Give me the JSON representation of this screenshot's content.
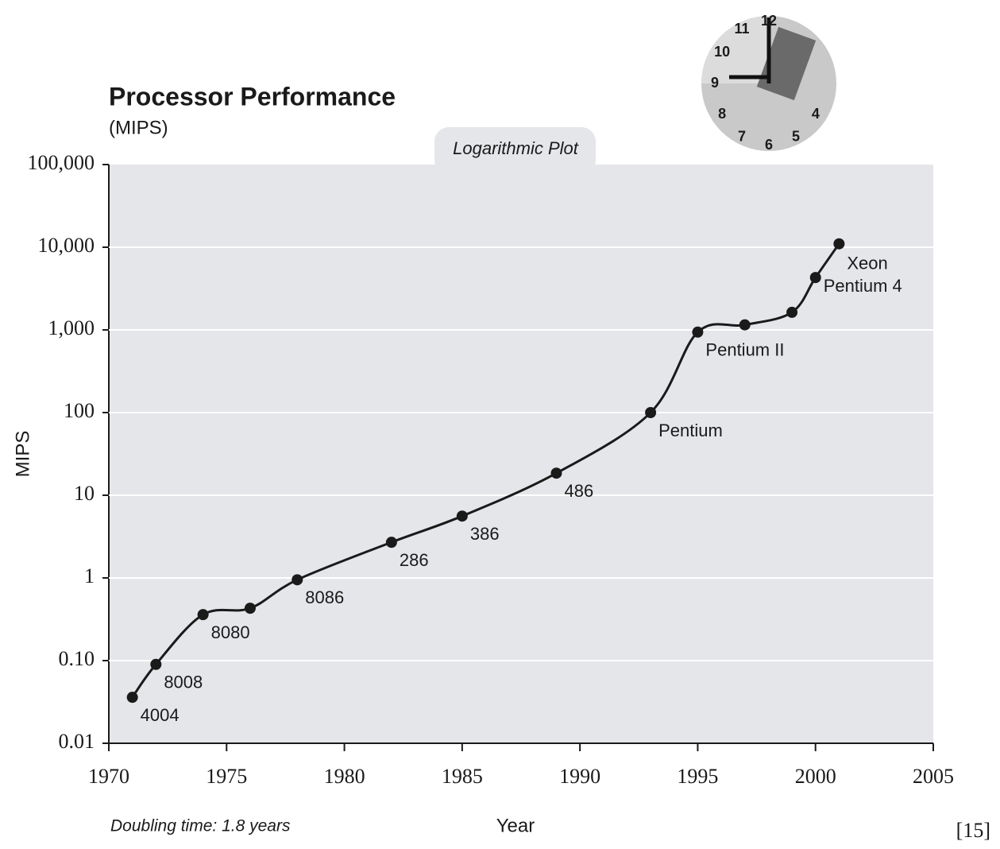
{
  "chart_data": {
    "type": "line",
    "title": "Processor Performance",
    "subtitle": "(MIPS)",
    "annotation": "Logarithmic Plot",
    "note": "Doubling time: 1.8 years",
    "reference": "[15]",
    "x_label": "Year",
    "y_label": "MIPS",
    "clock_numbers": [
      "12",
      "11",
      "10",
      "9",
      "8",
      "7",
      "6",
      "5",
      "4"
    ],
    "x": [
      1971,
      1972,
      1974,
      1976,
      1978,
      1982,
      1985,
      1989,
      1993,
      1995,
      1997,
      1999,
      2000,
      2001
    ],
    "series": [
      {
        "name": "MIPS",
        "color": "#1a1a1a",
        "values": [
          0.036,
          0.09,
          0.36,
          0.43,
          0.95,
          2.7,
          5.6,
          18.5,
          100,
          940,
          1150,
          1630,
          4300,
          11000
        ],
        "labels": [
          "4004",
          "8008",
          "8080",
          null,
          "8086",
          "286",
          "386",
          "486",
          "Pentium",
          "Pentium II",
          null,
          null,
          "Pentium 4",
          "Xeon"
        ]
      }
    ],
    "xlim": [
      1970,
      2005
    ],
    "xticks": [
      1970,
      1975,
      1980,
      1985,
      1990,
      1995,
      2000,
      2005
    ],
    "ylim": [
      0.01,
      100000
    ],
    "log_y": true,
    "yticks": [
      {
        "value": 0.01,
        "label": "0.01"
      },
      {
        "value": 0.1,
        "label": "0.10"
      },
      1,
      10,
      100,
      {
        "value": 1000,
        "label": "1,000"
      },
      {
        "value": 10000,
        "label": "10,000"
      },
      {
        "value": 100000,
        "label": "100,000"
      }
    ],
    "grid": true
  }
}
